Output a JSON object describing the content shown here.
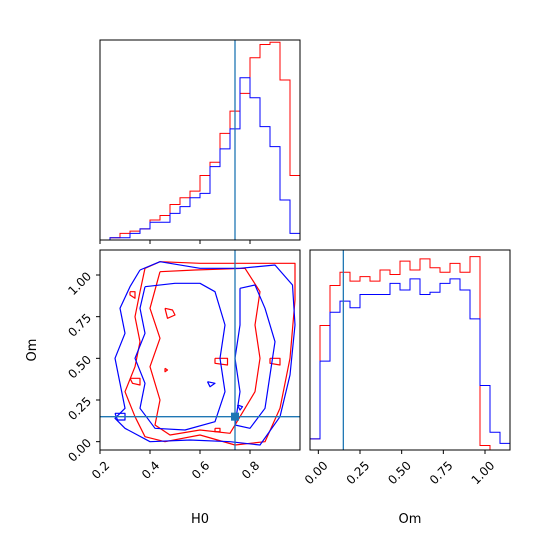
{
  "chart_data": [
    {
      "type": "histogram",
      "panel": "H0 marginal",
      "xlim": [
        0.2,
        1.0
      ],
      "truth_x": 0.74,
      "bin_edges": [
        0.2,
        0.24,
        0.28,
        0.32,
        0.36,
        0.4,
        0.44,
        0.48,
        0.52,
        0.56,
        0.6,
        0.64,
        0.68,
        0.72,
        0.76,
        0.8,
        0.84,
        0.88,
        0.92,
        0.96,
        1.0
      ],
      "series": [
        {
          "color": "#ff0000",
          "heights": [
            0.0,
            0.01,
            0.03,
            0.04,
            0.05,
            0.09,
            0.11,
            0.16,
            0.19,
            0.22,
            0.29,
            0.35,
            0.48,
            0.58,
            0.66,
            0.82,
            0.88,
            0.89,
            0.72,
            0.29
          ]
        },
        {
          "color": "#0000ff",
          "heights": [
            0.0,
            0.01,
            0.01,
            0.03,
            0.05,
            0.08,
            0.08,
            0.12,
            0.15,
            0.19,
            0.21,
            0.33,
            0.41,
            0.5,
            0.73,
            0.64,
            0.51,
            0.42,
            0.18,
            0.03
          ]
        }
      ],
      "x_ticks": [
        0.2,
        0.4,
        0.6,
        0.8
      ]
    },
    {
      "type": "contour",
      "panel": "H0 vs Om",
      "xlabel": "H0",
      "ylabel": "Om",
      "xlim": [
        0.2,
        1.0
      ],
      "ylim": [
        -0.05,
        1.15
      ],
      "x_ticks": [
        0.2,
        0.4,
        0.6,
        0.8
      ],
      "y_ticks": [
        0.0,
        0.25,
        0.5,
        0.75,
        1.0
      ],
      "x_tick_labels": [
        "0.2",
        "0.4",
        "0.6",
        "0.8"
      ],
      "y_tick_labels": [
        "0.00",
        "0.25",
        "0.50",
        "0.75",
        "1.00"
      ],
      "truth": [
        0.74,
        0.15
      ],
      "series": [
        {
          "color": "#ff0000",
          "contours": [
            [
              [
                0.38,
                1.04
              ],
              [
                0.44,
                1.08
              ],
              [
                0.6,
                1.07
              ],
              [
                0.78,
                1.07
              ],
              [
                0.98,
                1.07
              ],
              [
                0.98,
                0.85
              ],
              [
                0.96,
                0.5
              ],
              [
                0.92,
                0.2
              ],
              [
                0.86,
                0.0
              ],
              [
                0.74,
                -0.02
              ],
              [
                0.6,
                0.04
              ],
              [
                0.46,
                0.0
              ],
              [
                0.38,
                0.03
              ],
              [
                0.34,
                0.15
              ],
              [
                0.3,
                0.3
              ],
              [
                0.34,
                0.45
              ],
              [
                0.36,
                0.6
              ],
              [
                0.34,
                0.75
              ],
              [
                0.36,
                0.9
              ],
              [
                0.38,
                1.04
              ]
            ],
            [
              [
                0.44,
                1.02
              ],
              [
                0.58,
                1.03
              ],
              [
                0.78,
                1.04
              ],
              [
                0.84,
                0.9
              ],
              [
                0.82,
                0.7
              ],
              [
                0.84,
                0.5
              ],
              [
                0.82,
                0.3
              ],
              [
                0.76,
                0.15
              ],
              [
                0.72,
                0.05
              ],
              [
                0.6,
                0.07
              ],
              [
                0.48,
                0.04
              ],
              [
                0.42,
                0.1
              ],
              [
                0.44,
                0.25
              ],
              [
                0.4,
                0.45
              ],
              [
                0.44,
                0.62
              ],
              [
                0.4,
                0.8
              ],
              [
                0.44,
                1.02
              ]
            ],
            [
              [
                0.46,
                0.8
              ],
              [
                0.49,
                0.79
              ],
              [
                0.5,
                0.76
              ],
              [
                0.47,
                0.74
              ],
              [
                0.46,
                0.8
              ]
            ],
            [
              [
                0.32,
                0.9
              ],
              [
                0.34,
                0.9
              ],
              [
                0.34,
                0.86
              ],
              [
                0.32,
                0.88
              ],
              [
                0.32,
                0.9
              ]
            ],
            [
              [
                0.32,
                0.38
              ],
              [
                0.36,
                0.38
              ],
              [
                0.36,
                0.34
              ],
              [
                0.33,
                0.35
              ],
              [
                0.32,
                0.38
              ]
            ],
            [
              [
                0.46,
                0.44
              ],
              [
                0.47,
                0.43
              ],
              [
                0.46,
                0.42
              ],
              [
                0.46,
                0.44
              ]
            ],
            [
              [
                0.66,
                0.5
              ],
              [
                0.71,
                0.5
              ],
              [
                0.71,
                0.46
              ],
              [
                0.66,
                0.47
              ],
              [
                0.66,
                0.5
              ]
            ],
            [
              [
                0.88,
                0.5
              ],
              [
                0.92,
                0.5
              ],
              [
                0.92,
                0.46
              ],
              [
                0.88,
                0.47
              ],
              [
                0.88,
                0.5
              ]
            ],
            [
              [
                0.66,
                0.08
              ],
              [
                0.68,
                0.08
              ],
              [
                0.68,
                0.06
              ],
              [
                0.66,
                0.06
              ],
              [
                0.66,
                0.08
              ]
            ]
          ]
        },
        {
          "color": "#0000ff",
          "contours": [
            [
              [
                0.36,
                1.03
              ],
              [
                0.44,
                1.08
              ],
              [
                0.6,
                1.04
              ],
              [
                0.76,
                1.04
              ],
              [
                0.9,
                1.06
              ],
              [
                0.97,
                0.94
              ],
              [
                0.98,
                0.7
              ],
              [
                0.96,
                0.4
              ],
              [
                0.92,
                0.15
              ],
              [
                0.84,
                -0.02
              ],
              [
                0.72,
                0.0
              ],
              [
                0.56,
                0.01
              ],
              [
                0.4,
                0.0
              ],
              [
                0.3,
                0.08
              ],
              [
                0.26,
                0.14
              ],
              [
                0.3,
                0.2
              ],
              [
                0.28,
                0.35
              ],
              [
                0.26,
                0.5
              ],
              [
                0.3,
                0.65
              ],
              [
                0.28,
                0.8
              ],
              [
                0.32,
                0.93
              ],
              [
                0.36,
                1.03
              ]
            ],
            [
              [
                0.38,
                0.93
              ],
              [
                0.5,
                0.95
              ],
              [
                0.6,
                0.95
              ],
              [
                0.66,
                0.9
              ],
              [
                0.7,
                0.7
              ],
              [
                0.68,
                0.5
              ],
              [
                0.7,
                0.3
              ],
              [
                0.66,
                0.12
              ],
              [
                0.54,
                0.07
              ],
              [
                0.42,
                0.08
              ],
              [
                0.36,
                0.2
              ],
              [
                0.38,
                0.35
              ],
              [
                0.34,
                0.5
              ],
              [
                0.38,
                0.65
              ],
              [
                0.36,
                0.8
              ],
              [
                0.38,
                0.93
              ]
            ],
            [
              [
                0.76,
                0.92
              ],
              [
                0.82,
                0.94
              ],
              [
                0.86,
                0.8
              ],
              [
                0.9,
                0.6
              ],
              [
                0.88,
                0.4
              ],
              [
                0.86,
                0.2
              ],
              [
                0.8,
                0.08
              ],
              [
                0.74,
                0.1
              ],
              [
                0.76,
                0.3
              ],
              [
                0.74,
                0.5
              ],
              [
                0.76,
                0.7
              ],
              [
                0.76,
                0.92
              ]
            ],
            [
              [
                0.63,
                0.36
              ],
              [
                0.66,
                0.35
              ],
              [
                0.64,
                0.33
              ],
              [
                0.63,
                0.36
              ]
            ],
            [
              [
                0.75,
                0.22
              ],
              [
                0.77,
                0.21
              ],
              [
                0.76,
                0.19
              ],
              [
                0.75,
                0.22
              ]
            ],
            [
              [
                0.26,
                0.17
              ],
              [
                0.3,
                0.17
              ],
              [
                0.3,
                0.13
              ],
              [
                0.27,
                0.13
              ],
              [
                0.26,
                0.17
              ]
            ]
          ]
        }
      ]
    },
    {
      "type": "histogram",
      "panel": "Om marginal",
      "xlabel": "Om",
      "xlim": [
        -0.05,
        1.15
      ],
      "truth_x": 0.15,
      "x_ticks": [
        0.0,
        0.25,
        0.5,
        0.75,
        1.0
      ],
      "x_tick_labels": [
        "0.00",
        "0.25",
        "0.50",
        "0.75",
        "1.00"
      ],
      "bin_edges": [
        -0.05,
        0.01,
        0.07,
        0.13,
        0.19,
        0.25,
        0.31,
        0.37,
        0.43,
        0.49,
        0.55,
        0.61,
        0.67,
        0.73,
        0.79,
        0.85,
        0.91,
        0.97,
        1.03,
        1.09,
        1.15
      ],
      "series": [
        {
          "color": "#ff0000",
          "heights": [
            0.05,
            0.56,
            0.74,
            0.8,
            0.76,
            0.78,
            0.76,
            0.81,
            0.79,
            0.85,
            0.81,
            0.86,
            0.82,
            0.8,
            0.84,
            0.8,
            0.87,
            0.02,
            0.0,
            0.0
          ]
        },
        {
          "color": "#0000ff",
          "heights": [
            0.05,
            0.4,
            0.62,
            0.67,
            0.64,
            0.7,
            0.7,
            0.7,
            0.75,
            0.72,
            0.77,
            0.7,
            0.71,
            0.75,
            0.77,
            0.72,
            0.59,
            0.29,
            0.08,
            0.03
          ]
        }
      ]
    }
  ],
  "colors": {
    "series_a": "#ff0000",
    "series_b": "#0000ff",
    "truth": "#1f77b4"
  }
}
